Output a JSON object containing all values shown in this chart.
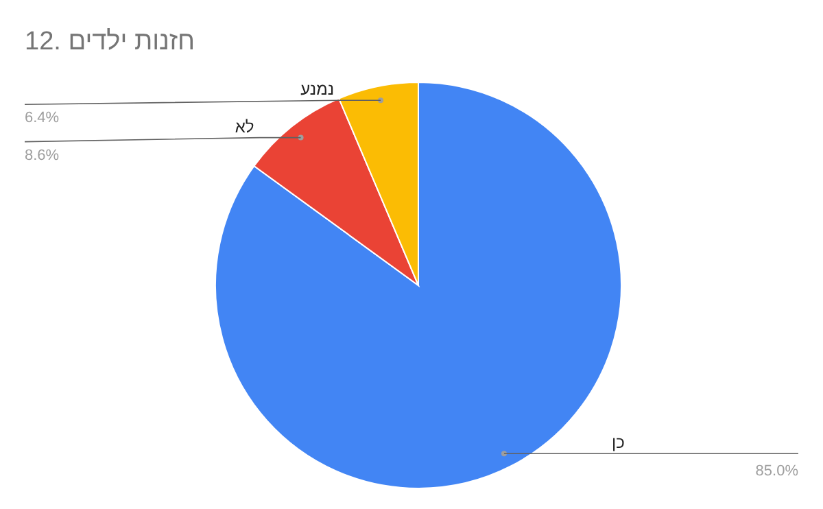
{
  "chart_data": {
    "type": "pie",
    "title": "12. חזנות ילדים",
    "categories": [
      "כן",
      "לא",
      "נמנע"
    ],
    "values": [
      85.0,
      8.6,
      6.4
    ],
    "colors": [
      "#4285f4",
      "#ea4335",
      "#fbbc04"
    ],
    "value_labels": [
      "85.0%",
      "8.6%",
      "6.4%"
    ],
    "legend": false
  }
}
